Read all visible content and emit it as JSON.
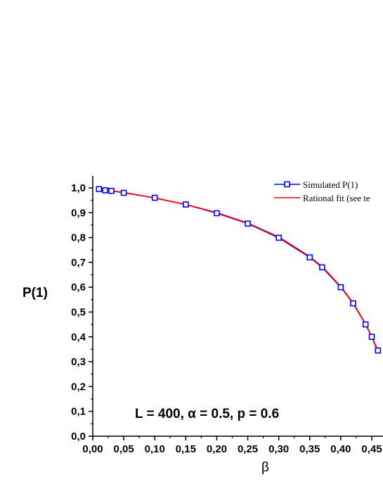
{
  "chart_data": {
    "type": "line",
    "xlabel": "β",
    "ylabel": "P(1)",
    "xlim": [
      0,
      0.46
    ],
    "ylim": [
      0,
      1.05
    ],
    "x_ticks": [
      "0,00",
      "0,05",
      "0,10",
      "0,15",
      "0,20",
      "0,25",
      "0,30",
      "0,35",
      "0,40",
      "0,45"
    ],
    "y_ticks": [
      "0,0",
      "0,1",
      "0,2",
      "0,3",
      "0,4",
      "0,5",
      "0,6",
      "0,7",
      "0,8",
      "0,9",
      "1,0"
    ],
    "annotation": "L = 400, α = 0.5, p = 0.6",
    "legend_position": "top-right",
    "series": [
      {
        "name": "Simulated P(1)",
        "color": "#0000ff",
        "marker": "square",
        "x": [
          0.01,
          0.02,
          0.03,
          0.05,
          0.1,
          0.15,
          0.2,
          0.25,
          0.3,
          0.35,
          0.37,
          0.4,
          0.42,
          0.44,
          0.45,
          0.46
        ],
        "y": [
          0.995,
          0.99,
          0.988,
          0.98,
          0.96,
          0.933,
          0.898,
          0.856,
          0.799,
          0.72,
          0.68,
          0.6,
          0.535,
          0.45,
          0.4,
          0.345
        ]
      },
      {
        "name": "Rational fit (see te",
        "color": "#ff0000",
        "marker": "none",
        "x": [
          0.01,
          0.03,
          0.05,
          0.08,
          0.1,
          0.15,
          0.2,
          0.25,
          0.3,
          0.33,
          0.35,
          0.37,
          0.4,
          0.42,
          0.44,
          0.45,
          0.46
        ],
        "y": [
          0.995,
          0.988,
          0.981,
          0.968,
          0.959,
          0.933,
          0.9,
          0.858,
          0.802,
          0.755,
          0.722,
          0.683,
          0.602,
          0.536,
          0.452,
          0.4,
          0.34
        ]
      }
    ]
  }
}
